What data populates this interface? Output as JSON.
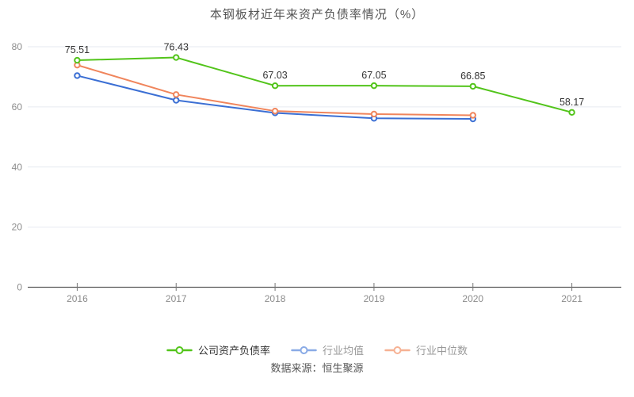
{
  "source": "数据来源：恒生聚源",
  "chart_data": {
    "type": "line",
    "title": "本钢板材近年来资产负债率情况（%）",
    "categories": [
      "2016",
      "2017",
      "2018",
      "2019",
      "2020",
      "2021"
    ],
    "series": [
      {
        "name": "公司资产负债率",
        "color": "#52c41a",
        "legend_color": "#52c41a",
        "legend_text_color": "#333333",
        "show_labels": true,
        "values": [
          75.51,
          76.43,
          67.03,
          67.05,
          66.85,
          58.17
        ],
        "labels": [
          "75.51",
          "76.43",
          "67.03",
          "67.05",
          "66.85",
          "58.17"
        ]
      },
      {
        "name": "行业均值",
        "color": "#3b6fd4",
        "legend_color": "#8aabe6",
        "legend_text_color": "#999999",
        "show_labels": false,
        "values": [
          70.4,
          62.2,
          58.0,
          56.2,
          56.0
        ],
        "labels": []
      },
      {
        "name": "行业中位数",
        "color": "#f0855c",
        "legend_color": "#f6b193",
        "legend_text_color": "#999999",
        "show_labels": false,
        "values": [
          73.9,
          64.1,
          58.6,
          57.6,
          57.2
        ],
        "labels": []
      }
    ],
    "xlabel": "",
    "ylabel": "",
    "ylim": [
      0,
      80
    ],
    "y_ticks": [
      0,
      20,
      40,
      60,
      80
    ],
    "grid": true,
    "legend_position": "bottom",
    "style": {
      "title_color": "#555555",
      "axis_label_color": "#8c8c8c",
      "data_label_color": "#333333",
      "grid_color": "#e6eaf1",
      "axis_line_color": "#5a5a5a",
      "tick_color": "#777777",
      "source_color": "#555555",
      "background": "#ffffff",
      "marker_fill": "#ffffff"
    }
  }
}
